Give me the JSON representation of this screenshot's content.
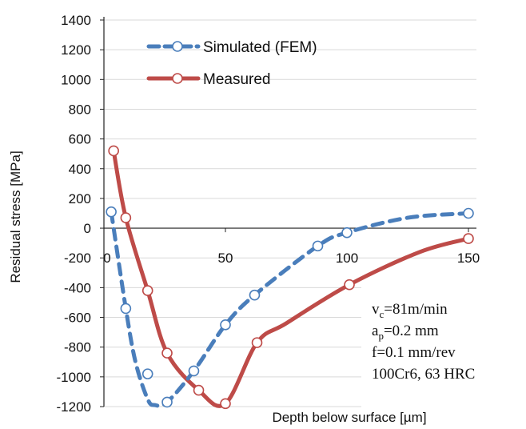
{
  "chart_data": {
    "type": "line",
    "ylabel": "Residual stress [MPa]",
    "xlabel": "Depth below surface [µm]",
    "xlim": [
      0,
      150
    ],
    "ylim": [
      -1200,
      1400
    ],
    "xticks": [
      0,
      50,
      100,
      150
    ],
    "xtick_labels": [
      "0",
      "50",
      "100",
      "150"
    ],
    "yticks": [
      -1200,
      -1000,
      -800,
      -600,
      -400,
      -200,
      0,
      200,
      400,
      600,
      800,
      1000,
      1200,
      1400
    ],
    "grid": "horizontal",
    "legend_position": "top-left",
    "series": [
      {
        "name": "Simulated (FEM)",
        "color": "#4a7ebb",
        "line_style": "dashed",
        "x": [
          3,
          9,
          18,
          26,
          37,
          50,
          62,
          88,
          100,
          150
        ],
        "y": [
          110,
          -540,
          -980,
          -1170,
          -960,
          -650,
          -450,
          -120,
          -30,
          100
        ],
        "shape_x": [
          3,
          9,
          13,
          18,
          21,
          26,
          37,
          50,
          62,
          88,
          100,
          125,
          150
        ],
        "shape_y": [
          110,
          -540,
          -900,
          -1150,
          -1190,
          -1170,
          -960,
          -650,
          -450,
          -120,
          -30,
          70,
          100
        ]
      },
      {
        "name": "Measured",
        "color": "#be4b48",
        "line_style": "solid",
        "x": [
          4,
          9,
          18,
          26,
          39,
          50,
          63,
          101,
          150
        ],
        "y": [
          520,
          70,
          -420,
          -840,
          -1090,
          -1180,
          -770,
          -380,
          -70
        ],
        "shape_x": [
          4,
          9,
          18,
          26,
          39,
          50,
          63,
          75,
          101,
          130,
          150
        ],
        "shape_y": [
          520,
          70,
          -420,
          -840,
          -1090,
          -1180,
          -770,
          -640,
          -380,
          -160,
          -70
        ]
      }
    ],
    "annotations": [
      {
        "base": "v",
        "sub": "c",
        "rest": "=81m/min"
      },
      {
        "base": "a",
        "sub": "p",
        "rest": "=0.2 mm"
      },
      {
        "base": "f=0.1 mm/rev",
        "sub": "",
        "rest": ""
      },
      {
        "base": "100Cr6, 63 HRC",
        "sub": "",
        "rest": ""
      }
    ]
  }
}
